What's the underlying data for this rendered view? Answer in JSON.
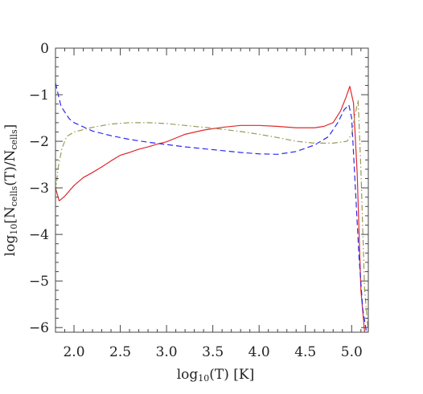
{
  "chart_data": {
    "type": "line",
    "xlabel": "log10(T) [K]",
    "ylabel": "log10[Ncells(T)/Ncells]",
    "xlim": [
      1.8,
      5.18
    ],
    "ylim": [
      -6.1,
      0
    ],
    "x_ticks": [
      "2.0",
      "2.5",
      "3.0",
      "3.5",
      "4.0",
      "4.5",
      "5.0"
    ],
    "y_ticks": [
      "0",
      "−1",
      "−2",
      "−3",
      "−4",
      "−5",
      "−6"
    ],
    "grid": false,
    "legend": "none",
    "series": [
      {
        "style": "solid",
        "color": "#e0282b",
        "x": [
          1.8,
          1.84,
          1.9,
          2.0,
          2.1,
          2.2,
          2.3,
          2.4,
          2.5,
          2.6,
          2.7,
          2.8,
          2.9,
          3.0,
          3.1,
          3.2,
          3.4,
          3.6,
          3.8,
          4.0,
          4.2,
          4.4,
          4.6,
          4.7,
          4.8,
          4.88,
          4.94,
          4.98,
          5.02,
          5.06,
          5.1,
          5.14,
          5.18
        ],
        "y": [
          -3.0,
          -3.28,
          -3.18,
          -2.95,
          -2.78,
          -2.67,
          -2.55,
          -2.42,
          -2.3,
          -2.24,
          -2.17,
          -2.12,
          -2.06,
          -2.01,
          -1.93,
          -1.85,
          -1.76,
          -1.7,
          -1.66,
          -1.66,
          -1.68,
          -1.71,
          -1.71,
          -1.68,
          -1.6,
          -1.35,
          -1.05,
          -0.82,
          -1.18,
          -2.7,
          -5.2,
          -6.1,
          -6.1
        ]
      },
      {
        "style": "dashed",
        "color": "#2a2af0",
        "x": [
          1.8,
          1.86,
          1.95,
          2.0,
          2.2,
          2.4,
          2.6,
          2.8,
          3.0,
          3.2,
          3.4,
          3.6,
          3.8,
          4.0,
          4.2,
          4.4,
          4.6,
          4.75,
          4.85,
          4.92,
          4.97,
          5.0,
          5.04,
          5.08,
          5.12,
          5.16
        ],
        "y": [
          -0.75,
          -1.25,
          -1.52,
          -1.6,
          -1.78,
          -1.88,
          -1.96,
          -2.02,
          -2.07,
          -2.12,
          -2.16,
          -2.2,
          -2.24,
          -2.27,
          -2.28,
          -2.22,
          -2.08,
          -1.9,
          -1.6,
          -1.32,
          -1.22,
          -1.5,
          -3.0,
          -4.5,
          -5.6,
          -6.1
        ]
      },
      {
        "style": "dash-dot",
        "color": "#9a9a55",
        "x": [
          1.8,
          1.83,
          1.87,
          1.92,
          2.0,
          2.2,
          2.4,
          2.6,
          2.8,
          3.0,
          3.2,
          3.4,
          3.6,
          3.8,
          4.0,
          4.2,
          4.4,
          4.6,
          4.8,
          4.95,
          5.0,
          5.04,
          5.07,
          5.1,
          5.14,
          5.18
        ],
        "y": [
          -3.1,
          -2.55,
          -2.15,
          -1.9,
          -1.8,
          -1.7,
          -1.63,
          -1.6,
          -1.6,
          -1.62,
          -1.66,
          -1.7,
          -1.74,
          -1.79,
          -1.85,
          -1.92,
          -2.0,
          -2.04,
          -2.04,
          -2.0,
          -1.85,
          -1.4,
          -1.12,
          -2.6,
          -5.2,
          -6.1
        ]
      }
    ]
  }
}
